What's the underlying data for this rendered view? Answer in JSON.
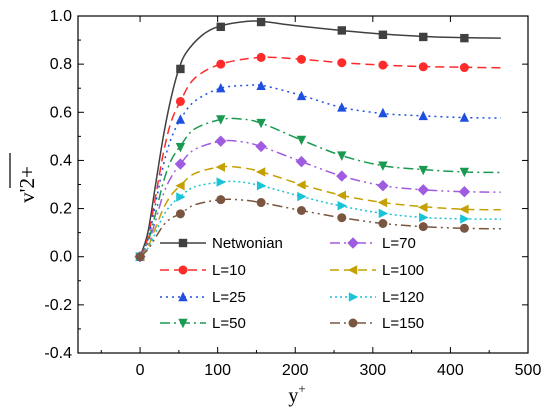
{
  "chart_data": {
    "type": "line",
    "xlabel": "y",
    "xlabel_sup": "+",
    "ylabel": "v'2+",
    "xlim": [
      -80,
      500
    ],
    "ylim": [
      -0.4,
      1.0
    ],
    "xticks": [
      0,
      100,
      200,
      300,
      400,
      500
    ],
    "yticks": [
      -0.4,
      -0.2,
      0.0,
      0.2,
      0.4,
      0.6,
      0.8,
      1.0
    ],
    "grid": false,
    "legend_position": "lower-center",
    "series": [
      {
        "name": "Netwonian",
        "color": "#404040",
        "marker": "square",
        "dash": "",
        "curve": [
          [
            0,
            0
          ],
          [
            10,
            0.1
          ],
          [
            20,
            0.3
          ],
          [
            30,
            0.5
          ],
          [
            40,
            0.66
          ],
          [
            50,
            0.78
          ],
          [
            60,
            0.85
          ],
          [
            80,
            0.92
          ],
          [
            100,
            0.955
          ],
          [
            130,
            0.975
          ],
          [
            155,
            0.978
          ],
          [
            200,
            0.96
          ],
          [
            260,
            0.94
          ],
          [
            313,
            0.925
          ],
          [
            365,
            0.915
          ],
          [
            418,
            0.91
          ],
          [
            465,
            0.908
          ]
        ],
        "points": [
          [
            0,
            0
          ],
          [
            52,
            0.78
          ],
          [
            104,
            0.955
          ],
          [
            156,
            0.975
          ],
          [
            260,
            0.94
          ],
          [
            313,
            0.922
          ],
          [
            365,
            0.913
          ],
          [
            418,
            0.908
          ]
        ]
      },
      {
        "name": "L=10",
        "color": "#ff2a2a",
        "marker": "circle",
        "dash": "9,5",
        "curve": [
          [
            0,
            0
          ],
          [
            10,
            0.08
          ],
          [
            20,
            0.25
          ],
          [
            30,
            0.43
          ],
          [
            40,
            0.56
          ],
          [
            52,
            0.645
          ],
          [
            70,
            0.74
          ],
          [
            104,
            0.8
          ],
          [
            156,
            0.828
          ],
          [
            208,
            0.82
          ],
          [
            260,
            0.806
          ],
          [
            313,
            0.796
          ],
          [
            365,
            0.79
          ],
          [
            418,
            0.787
          ],
          [
            465,
            0.785
          ]
        ],
        "points": [
          [
            0,
            0
          ],
          [
            52,
            0.645
          ],
          [
            104,
            0.8
          ],
          [
            156,
            0.828
          ],
          [
            208,
            0.82
          ],
          [
            260,
            0.806
          ],
          [
            313,
            0.796
          ],
          [
            365,
            0.789
          ],
          [
            418,
            0.786
          ]
        ]
      },
      {
        "name": "L=25",
        "color": "#1f4fe0",
        "marker": "triangle",
        "dash": "2,4",
        "curve": [
          [
            0,
            0
          ],
          [
            10,
            0.07
          ],
          [
            20,
            0.22
          ],
          [
            30,
            0.38
          ],
          [
            40,
            0.49
          ],
          [
            52,
            0.57
          ],
          [
            70,
            0.645
          ],
          [
            104,
            0.7
          ],
          [
            140,
            0.712
          ],
          [
            160,
            0.71
          ],
          [
            208,
            0.67
          ],
          [
            260,
            0.62
          ],
          [
            313,
            0.595
          ],
          [
            365,
            0.585
          ],
          [
            418,
            0.578
          ],
          [
            465,
            0.576
          ]
        ],
        "points": [
          [
            0,
            0
          ],
          [
            52,
            0.57
          ],
          [
            104,
            0.7
          ],
          [
            156,
            0.71
          ],
          [
            208,
            0.668
          ],
          [
            260,
            0.62
          ],
          [
            313,
            0.597
          ],
          [
            365,
            0.585
          ],
          [
            418,
            0.578
          ]
        ]
      },
      {
        "name": "L=50",
        "color": "#1a9a50",
        "marker": "triangle-down",
        "dash": "10,4,2,4",
        "curve": [
          [
            0,
            0
          ],
          [
            10,
            0.06
          ],
          [
            20,
            0.18
          ],
          [
            30,
            0.31
          ],
          [
            40,
            0.4
          ],
          [
            52,
            0.46
          ],
          [
            70,
            0.53
          ],
          [
            104,
            0.57
          ],
          [
            130,
            0.572
          ],
          [
            156,
            0.555
          ],
          [
            208,
            0.485
          ],
          [
            260,
            0.42
          ],
          [
            313,
            0.378
          ],
          [
            365,
            0.362
          ],
          [
            418,
            0.352
          ],
          [
            465,
            0.35
          ]
        ],
        "points": [
          [
            0,
            0
          ],
          [
            52,
            0.455
          ],
          [
            104,
            0.57
          ],
          [
            156,
            0.555
          ],
          [
            208,
            0.485
          ],
          [
            260,
            0.42
          ],
          [
            313,
            0.378
          ],
          [
            365,
            0.36
          ],
          [
            418,
            0.352
          ]
        ]
      },
      {
        "name": "L=70",
        "color": "#a05ce0",
        "marker": "diamond",
        "dash": "10,4,2,4,2,4",
        "curve": [
          [
            0,
            0
          ],
          [
            10,
            0.05
          ],
          [
            20,
            0.15
          ],
          [
            30,
            0.26
          ],
          [
            40,
            0.33
          ],
          [
            52,
            0.385
          ],
          [
            70,
            0.445
          ],
          [
            104,
            0.48
          ],
          [
            130,
            0.478
          ],
          [
            156,
            0.458
          ],
          [
            208,
            0.395
          ],
          [
            260,
            0.335
          ],
          [
            313,
            0.295
          ],
          [
            365,
            0.278
          ],
          [
            418,
            0.27
          ],
          [
            465,
            0.268
          ]
        ],
        "points": [
          [
            0,
            0
          ],
          [
            52,
            0.385
          ],
          [
            104,
            0.48
          ],
          [
            156,
            0.458
          ],
          [
            208,
            0.395
          ],
          [
            260,
            0.335
          ],
          [
            313,
            0.295
          ],
          [
            365,
            0.278
          ],
          [
            418,
            0.27
          ]
        ]
      },
      {
        "name": "L=100",
        "color": "#c4a000",
        "marker": "triangle-left",
        "dash": "9,5",
        "curve": [
          [
            0,
            0
          ],
          [
            10,
            0.04
          ],
          [
            20,
            0.12
          ],
          [
            30,
            0.2
          ],
          [
            40,
            0.255
          ],
          [
            52,
            0.295
          ],
          [
            70,
            0.345
          ],
          [
            104,
            0.373
          ],
          [
            130,
            0.37
          ],
          [
            156,
            0.353
          ],
          [
            208,
            0.3
          ],
          [
            260,
            0.255
          ],
          [
            313,
            0.225
          ],
          [
            365,
            0.208
          ],
          [
            418,
            0.197
          ],
          [
            465,
            0.195
          ]
        ],
        "points": [
          [
            0,
            0
          ],
          [
            52,
            0.295
          ],
          [
            104,
            0.372
          ],
          [
            156,
            0.352
          ],
          [
            208,
            0.298
          ],
          [
            260,
            0.255
          ],
          [
            313,
            0.225
          ],
          [
            365,
            0.205
          ],
          [
            418,
            0.197
          ]
        ]
      },
      {
        "name": "L=120",
        "color": "#19c3d8",
        "marker": "triangle-right",
        "dash": "2,3",
        "curve": [
          [
            0,
            0
          ],
          [
            10,
            0.035
          ],
          [
            20,
            0.1
          ],
          [
            30,
            0.17
          ],
          [
            40,
            0.215
          ],
          [
            52,
            0.25
          ],
          [
            70,
            0.29
          ],
          [
            104,
            0.31
          ],
          [
            125,
            0.312
          ],
          [
            156,
            0.295
          ],
          [
            208,
            0.25
          ],
          [
            260,
            0.21
          ],
          [
            313,
            0.18
          ],
          [
            365,
            0.163
          ],
          [
            418,
            0.157
          ],
          [
            465,
            0.156
          ]
        ],
        "points": [
          [
            0,
            0
          ],
          [
            52,
            0.248
          ],
          [
            104,
            0.31
          ],
          [
            156,
            0.295
          ],
          [
            208,
            0.25
          ],
          [
            260,
            0.212
          ],
          [
            313,
            0.18
          ],
          [
            365,
            0.163
          ],
          [
            418,
            0.157
          ]
        ]
      },
      {
        "name": "L=150",
        "color": "#7a5540",
        "marker": "circle",
        "dash": "10,4,2,4,2,4",
        "curve": [
          [
            0,
            0
          ],
          [
            10,
            0.03
          ],
          [
            20,
            0.08
          ],
          [
            30,
            0.13
          ],
          [
            40,
            0.16
          ],
          [
            52,
            0.178
          ],
          [
            70,
            0.215
          ],
          [
            104,
            0.237
          ],
          [
            130,
            0.236
          ],
          [
            156,
            0.225
          ],
          [
            208,
            0.192
          ],
          [
            260,
            0.162
          ],
          [
            313,
            0.138
          ],
          [
            365,
            0.125
          ],
          [
            418,
            0.118
          ],
          [
            465,
            0.116
          ]
        ],
        "points": [
          [
            0,
            0
          ],
          [
            52,
            0.178
          ],
          [
            104,
            0.237
          ],
          [
            156,
            0.225
          ],
          [
            208,
            0.192
          ],
          [
            260,
            0.162
          ],
          [
            313,
            0.138
          ],
          [
            365,
            0.125
          ],
          [
            418,
            0.118
          ]
        ]
      }
    ]
  }
}
